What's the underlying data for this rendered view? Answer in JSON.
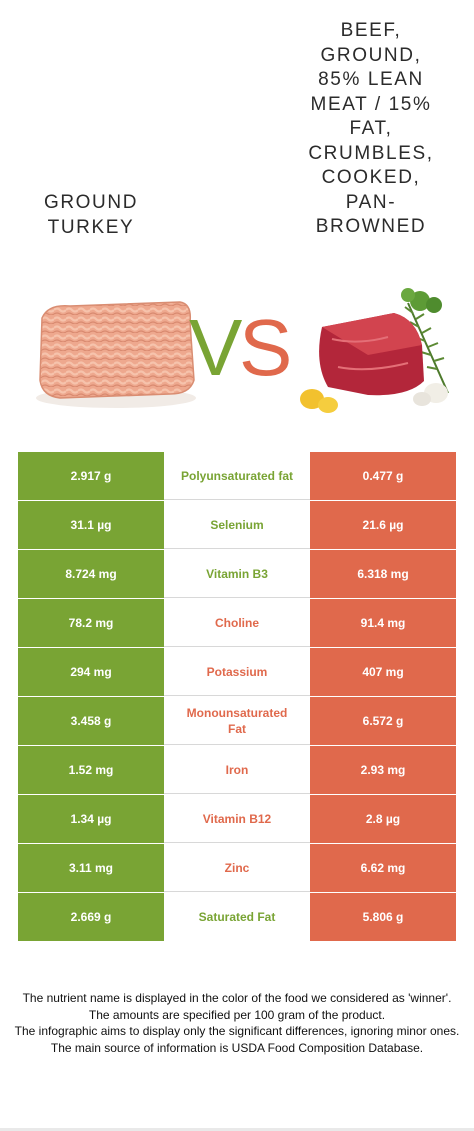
{
  "header": {
    "left_food": "GROUND TURKEY",
    "right_food": "BEEF, GROUND, 85% LEAN MEAT / 15% FAT, CRUMBLES, COOKED, PAN-BROWNED",
    "vs_left": "V",
    "vs_right": "S"
  },
  "colors": {
    "left_food": "#79a434",
    "right_food": "#e0694c"
  },
  "rows": [
    {
      "left": "2.917 g",
      "nutrient": "Polyunsaturated fat",
      "right": "0.477 g",
      "winner": "left"
    },
    {
      "left": "31.1 µg",
      "nutrient": "Selenium",
      "right": "21.6 µg",
      "winner": "left"
    },
    {
      "left": "8.724 mg",
      "nutrient": "Vitamin B3",
      "right": "6.318 mg",
      "winner": "left"
    },
    {
      "left": "78.2 mg",
      "nutrient": "Choline",
      "right": "91.4 mg",
      "winner": "right"
    },
    {
      "left": "294 mg",
      "nutrient": "Potassium",
      "right": "407 mg",
      "winner": "right"
    },
    {
      "left": "3.458 g",
      "nutrient": "Monounsaturated Fat",
      "right": "6.572 g",
      "winner": "right"
    },
    {
      "left": "1.52 mg",
      "nutrient": "Iron",
      "right": "2.93 mg",
      "winner": "right"
    },
    {
      "left": "1.34 µg",
      "nutrient": "Vitamin B12",
      "right": "2.8 µg",
      "winner": "right"
    },
    {
      "left": "3.11 mg",
      "nutrient": "Zinc",
      "right": "6.62 mg",
      "winner": "right"
    },
    {
      "left": "2.669 g",
      "nutrient": "Saturated Fat",
      "right": "5.806 g",
      "winner": "left"
    }
  ],
  "footnotes": [
    "The nutrient name is displayed in the color of the food we considered as 'winner'.",
    "The amounts are specified per 100 gram of the product.",
    "The infographic aims to display only the significant differences, ignoring minor ones.",
    "The main source of information is USDA Food Composition Database."
  ]
}
